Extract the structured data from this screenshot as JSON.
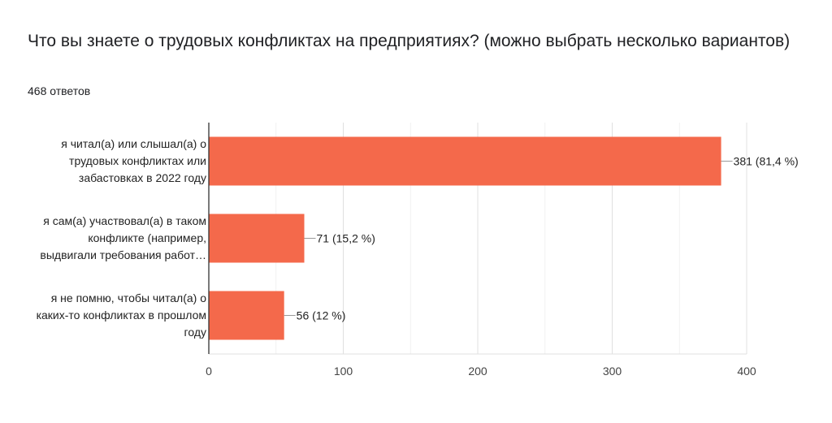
{
  "header": {
    "question": "Что вы знаете о трудовых конфликтах на предприятиях?  (можно выбрать несколько вариантов)",
    "responses": "468 ответов"
  },
  "chart_data": {
    "type": "bar",
    "orientation": "horizontal",
    "categories": [
      [
        "я читал(а) или слышал(а) о",
        "трудовых конфликтах или",
        "забастовках в 2022 году"
      ],
      [
        "я сам(а) участвовал(а) в таком",
        "конфликте (например,",
        "выдвигали требования работ…"
      ],
      [
        "я не помню, чтобы читал(а) о",
        "каких-то конфликтах в прошлом",
        "году"
      ]
    ],
    "values": [
      381,
      71,
      56
    ],
    "data_labels": [
      "381 (81,4 %)",
      "71 (15,2 %)",
      "56 (12 %)"
    ],
    "xlim": [
      0,
      400
    ],
    "xticks": [
      0,
      100,
      200,
      300,
      400
    ],
    "bar_color": "#f4694b",
    "grid": true
  }
}
